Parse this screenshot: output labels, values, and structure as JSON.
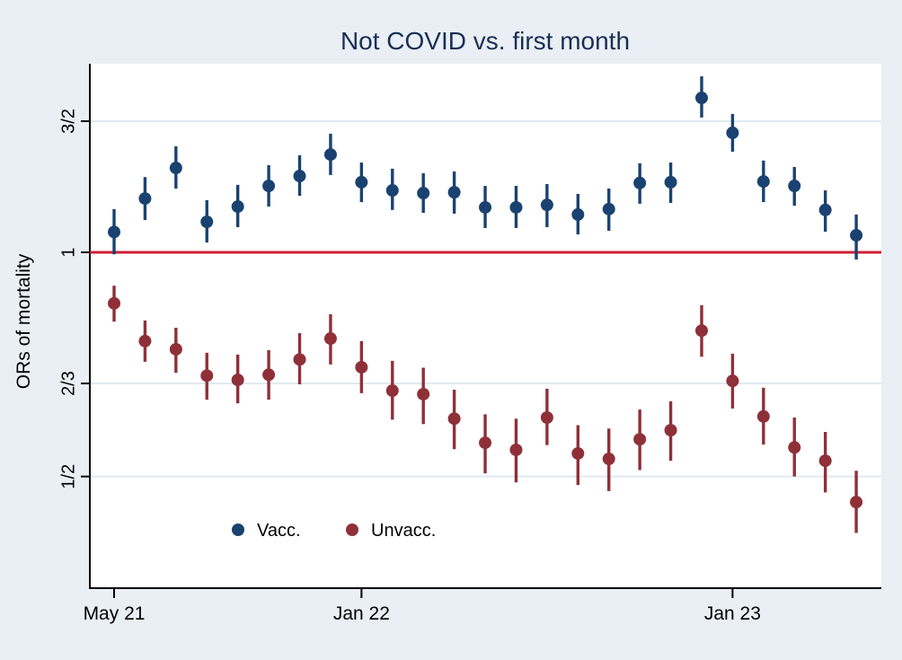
{
  "title": "Not COVID vs. first month",
  "colors": {
    "background": "#e9eff4",
    "plot_background": "#ffffff",
    "grid": "#dfeaf1",
    "axis_line": "#000000",
    "tick_text": "#000000",
    "title_text": "#1b2f54",
    "reference_line": "#cb1f34",
    "vacc": "#1a4270",
    "unvacc": "#8f3039"
  },
  "legend": {
    "vacc_label": "Vacc.",
    "unvacc_label": "Unvacc."
  },
  "chart_data": {
    "type": "scatter",
    "title": "Not COVID vs. first month",
    "xlabel": "",
    "ylabel": "ORs of mortality",
    "y_scale": "log",
    "ylim": [
      0.38,
      1.8
    ],
    "grid": true,
    "legend_position": "inside-bottom-left",
    "reference_line": 1,
    "y_ticks": [
      {
        "label": "3/2",
        "value": 1.5
      },
      {
        "label": "1",
        "value": 1.0
      },
      {
        "label": "2/3",
        "value": 0.6667
      },
      {
        "label": "1/2",
        "value": 0.5
      }
    ],
    "x_ticks": [
      {
        "label": "May 21",
        "index": 0
      },
      {
        "label": "Jan 22",
        "index": 8
      },
      {
        "label": "Jan 23",
        "index": 20
      }
    ],
    "months": [
      "May 21",
      "Jun 21",
      "Jul 21",
      "Aug 21",
      "Sep 21",
      "Oct 21",
      "Nov 21",
      "Dec 21",
      "Jan 22",
      "Feb 22",
      "Mar 22",
      "Apr 22",
      "May 22",
      "Jun 22",
      "Jul 22",
      "Aug 22",
      "Sep 22",
      "Oct 22",
      "Nov 22",
      "Dec 22",
      "Jan 23",
      "Feb 23",
      "Mar 23",
      "Apr 23",
      "May 23"
    ],
    "point_format": [
      "odds_ratio",
      "ci_low",
      "ci_high"
    ],
    "series": [
      {
        "name": "Vacc.",
        "color": "#1a4270",
        "values": [
          [
            1.065,
            0.994,
            1.143
          ],
          [
            1.181,
            1.105,
            1.262
          ],
          [
            1.298,
            1.218,
            1.388
          ],
          [
            1.099,
            1.031,
            1.175
          ],
          [
            1.152,
            1.081,
            1.232
          ],
          [
            1.228,
            1.152,
            1.309
          ],
          [
            1.266,
            1.191,
            1.35
          ],
          [
            1.353,
            1.27,
            1.443
          ],
          [
            1.242,
            1.168,
            1.32
          ],
          [
            1.211,
            1.14,
            1.295
          ],
          [
            1.201,
            1.13,
            1.277
          ],
          [
            1.204,
            1.127,
            1.284
          ],
          [
            1.149,
            1.078,
            1.228
          ],
          [
            1.149,
            1.078,
            1.228
          ],
          [
            1.158,
            1.081,
            1.235
          ],
          [
            1.124,
            1.057,
            1.198
          ],
          [
            1.143,
            1.069,
            1.218
          ],
          [
            1.239,
            1.162,
            1.317
          ],
          [
            1.242,
            1.165,
            1.32
          ],
          [
            1.612,
            1.517,
            1.723
          ],
          [
            1.447,
            1.365,
            1.534
          ],
          [
            1.245,
            1.168,
            1.328
          ],
          [
            1.228,
            1.155,
            1.302
          ],
          [
            1.14,
            1.066,
            1.211
          ],
          [
            1.054,
            0.978,
            1.124
          ]
        ]
      },
      {
        "name": "Unvacc.",
        "color": "#8f3039",
        "values": [
          [
            0.854,
            0.807,
            0.902
          ],
          [
            0.76,
            0.713,
            0.81
          ],
          [
            0.741,
            0.689,
            0.792
          ],
          [
            0.683,
            0.634,
            0.733
          ],
          [
            0.674,
            0.627,
            0.729
          ],
          [
            0.685,
            0.634,
            0.739
          ],
          [
            0.718,
            0.665,
            0.779
          ],
          [
            0.766,
            0.707,
            0.826
          ],
          [
            0.701,
            0.647,
            0.76
          ],
          [
            0.652,
            0.596,
            0.715
          ],
          [
            0.645,
            0.588,
            0.7
          ],
          [
            0.598,
            0.544,
            0.654
          ],
          [
            0.555,
            0.505,
            0.606
          ],
          [
            0.543,
            0.491,
            0.598
          ],
          [
            0.6,
            0.551,
            0.656
          ],
          [
            0.537,
            0.487,
            0.586
          ],
          [
            0.528,
            0.478,
            0.58
          ],
          [
            0.561,
            0.51,
            0.615
          ],
          [
            0.577,
            0.525,
            0.631
          ],
          [
            0.785,
            0.724,
            0.849
          ],
          [
            0.672,
            0.617,
            0.731
          ],
          [
            0.602,
            0.552,
            0.658
          ],
          [
            0.547,
            0.5,
            0.6
          ],
          [
            0.525,
            0.476,
            0.574
          ],
          [
            0.462,
            0.42,
            0.509
          ]
        ]
      }
    ]
  }
}
